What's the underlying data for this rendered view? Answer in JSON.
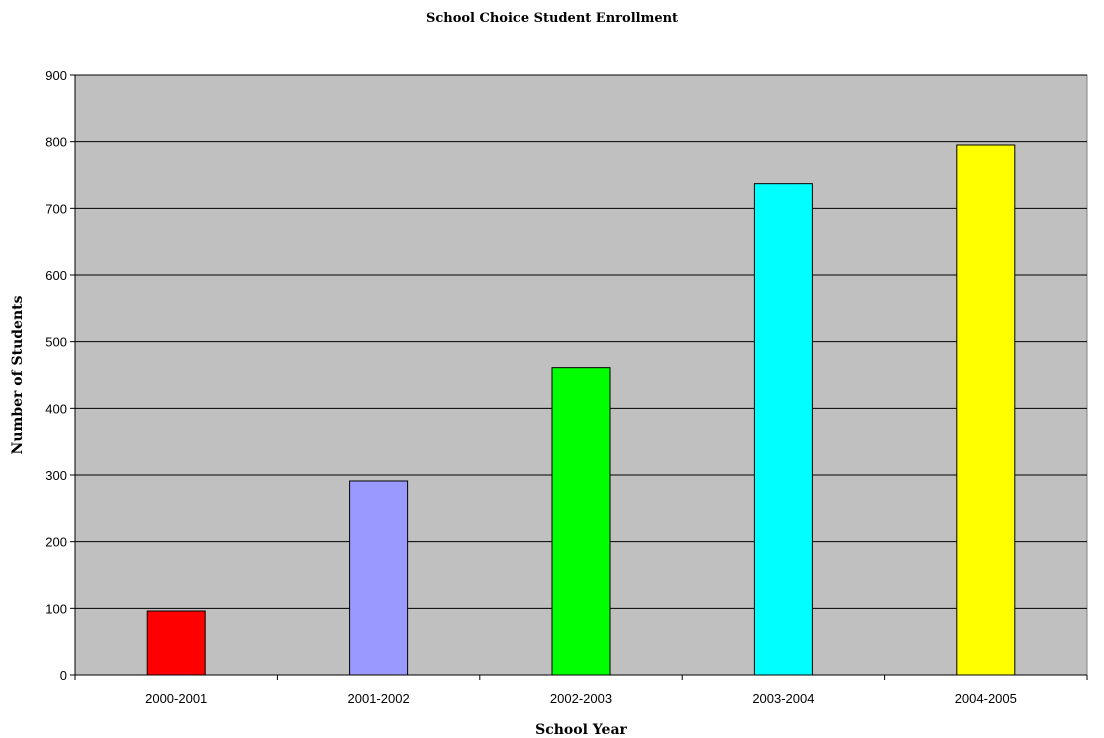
{
  "chart_data": {
    "type": "bar",
    "title": "School Choice Student Enrollment",
    "xlabel": "School Year",
    "ylabel": "Number of Students",
    "categories": [
      "2000-2001",
      "2001-2002",
      "2002-2003",
      "2003-2004",
      "2004-2005"
    ],
    "values": [
      96,
      291,
      461,
      737,
      795
    ],
    "colors": [
      "#ff0000",
      "#9999ff",
      "#00ff00",
      "#00ffff",
      "#ffff00"
    ],
    "ylim": [
      0,
      900
    ],
    "yticks": [
      0,
      100,
      200,
      300,
      400,
      500,
      600,
      700,
      800,
      900
    ],
    "grid": true,
    "plot_background": "#c0c0c0",
    "legend": "none"
  }
}
